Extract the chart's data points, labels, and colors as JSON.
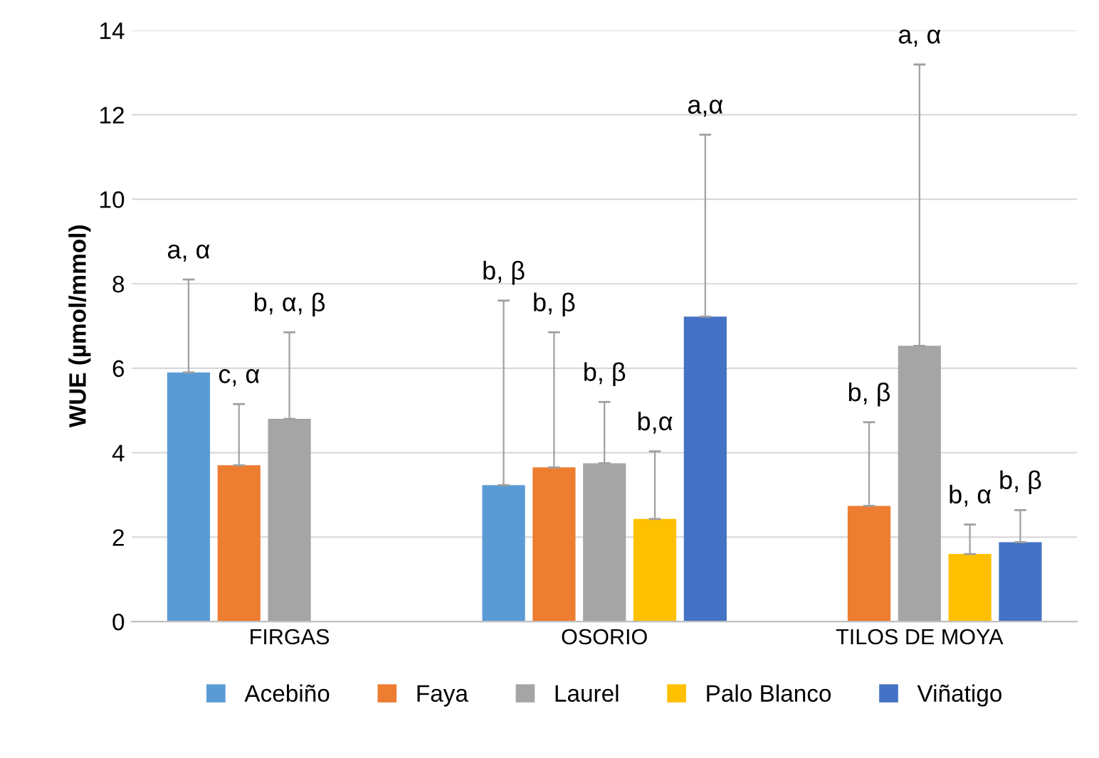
{
  "chart_data": {
    "type": "bar",
    "ylabel": "WUE (µmol/mmol)",
    "categories": [
      "FIRGAS",
      "OSORIO",
      "TILOS DE MOYA"
    ],
    "series": [
      {
        "name": "Acebiño",
        "color": "#5b9bd5",
        "values": [
          5.9,
          3.23,
          null
        ],
        "errors": [
          [
            5.9,
            8.1
          ],
          [
            3.23,
            7.6
          ],
          null
        ]
      },
      {
        "name": "Faya",
        "color": "#ed7d31",
        "values": [
          3.7,
          3.65,
          2.74
        ],
        "errors": [
          [
            3.7,
            5.15
          ],
          [
            3.65,
            6.85
          ],
          [
            2.74,
            4.72
          ]
        ]
      },
      {
        "name": "Laurel",
        "color": "#a5a5a5",
        "values": [
          4.8,
          3.75,
          6.53
        ],
        "errors": [
          [
            4.8,
            6.85
          ],
          [
            3.75,
            5.2
          ],
          [
            6.53,
            13.19
          ]
        ]
      },
      {
        "name": "Palo Blanco",
        "color": "#ffc000",
        "values": [
          null,
          2.43,
          1.6
        ],
        "errors": [
          null,
          [
            2.43,
            4.03
          ],
          [
            1.6,
            2.3
          ]
        ]
      },
      {
        "name": "Viñatigo",
        "color": "#4472c4",
        "values": [
          null,
          7.22,
          1.88
        ],
        "errors": [
          null,
          [
            7.22,
            11.53
          ],
          [
            1.88,
            2.64
          ]
        ]
      }
    ],
    "annotations": [
      "a, α",
      "c, α",
      "b, α, β",
      "b, β",
      "b, β",
      "b, β",
      "b,α",
      "a,α",
      "b, β",
      "a, α",
      "b, α",
      "b, β"
    ],
    "ylim": [
      0,
      14
    ],
    "yticks": [
      0,
      2,
      4,
      6,
      8,
      10,
      12,
      14
    ],
    "grid": "y",
    "legend": "bottom"
  }
}
